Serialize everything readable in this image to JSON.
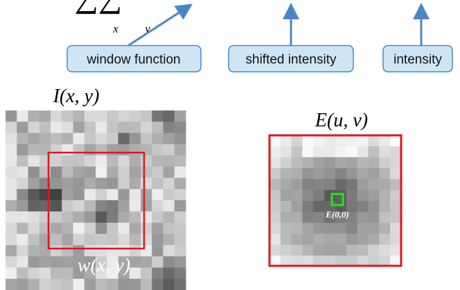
{
  "formula": {
    "sums": "∑∑",
    "sum_x": "x",
    "sum_y": "y"
  },
  "callouts": {
    "window": "window function",
    "shifted": "shifted intensity",
    "intensity": "intensity"
  },
  "left_image": {
    "title": "I(x, y)",
    "window_label": "w(x, y)"
  },
  "right_image": {
    "title": "E(u, v)",
    "center_label": "E(0,0)"
  }
}
